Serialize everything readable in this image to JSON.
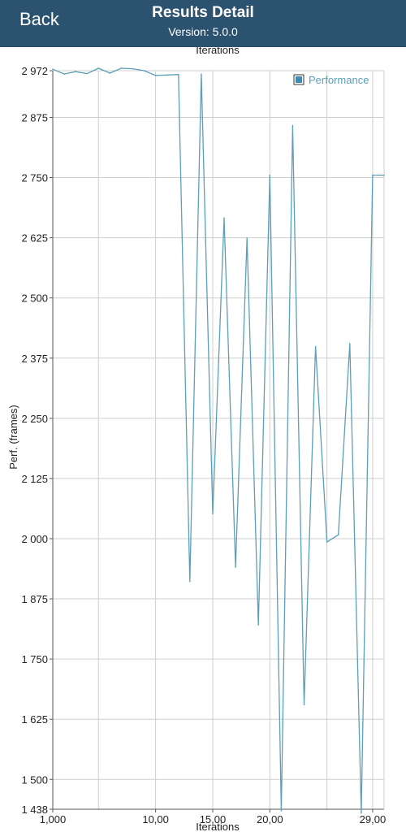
{
  "header": {
    "back_label": "Back",
    "title": "Results Detail",
    "version": "Version: 5.0.0"
  },
  "colors": {
    "header_bg": "#2b536f",
    "series": "#5b9fb8",
    "legend_box": "#3d8bb3"
  },
  "chart_data": {
    "type": "line",
    "top_label": "Iterations",
    "xlabel": "Iterations",
    "ylabel": "Perf. (frames)",
    "xlim": [
      0,
      29
    ],
    "ylim": [
      1438,
      2972
    ],
    "x_ticks": [
      {
        "value": 0,
        "label": "1,000"
      },
      {
        "value": 9,
        "label": "10,00"
      },
      {
        "value": 14,
        "label": "15,00"
      },
      {
        "value": 19,
        "label": "20,00"
      },
      {
        "value": 28,
        "label": "29,00"
      }
    ],
    "x_grid": [
      0,
      4,
      9,
      14,
      19,
      24,
      28
    ],
    "y_ticks": [
      {
        "value": 2972,
        "label": "2 972"
      },
      {
        "value": 2875,
        "label": "2 875"
      },
      {
        "value": 2750,
        "label": "2 750"
      },
      {
        "value": 2625,
        "label": "2 625"
      },
      {
        "value": 2500,
        "label": "2 500"
      },
      {
        "value": 2375,
        "label": "2 375"
      },
      {
        "value": 2250,
        "label": "2 250"
      },
      {
        "value": 2125,
        "label": "2 125"
      },
      {
        "value": 2000,
        "label": "2 000"
      },
      {
        "value": 1875,
        "label": "1 875"
      },
      {
        "value": 1750,
        "label": "1 750"
      },
      {
        "value": 1625,
        "label": "1 625"
      },
      {
        "value": 1500,
        "label": "1 500"
      },
      {
        "value": 1438,
        "label": "1 438"
      }
    ],
    "grid": true,
    "legend_position": "top-right",
    "series": [
      {
        "name": "Performance",
        "x": [
          0,
          1,
          2,
          3,
          4,
          5,
          6,
          7,
          8,
          9,
          10,
          11,
          12,
          13,
          14,
          15,
          16,
          17,
          18,
          19,
          20,
          21,
          22,
          23,
          24,
          25,
          26,
          27,
          28,
          29
        ],
        "values": [
          2975,
          2965,
          2970,
          2966,
          2977,
          2967,
          2977,
          2976,
          2972,
          2962,
          2963,
          2964,
          1911,
          2965,
          2052,
          2666,
          1941,
          2624,
          1821,
          2755,
          1435,
          2858,
          1655,
          2399,
          1993,
          2008,
          2405,
          1430,
          2755,
          2755
        ]
      }
    ]
  }
}
